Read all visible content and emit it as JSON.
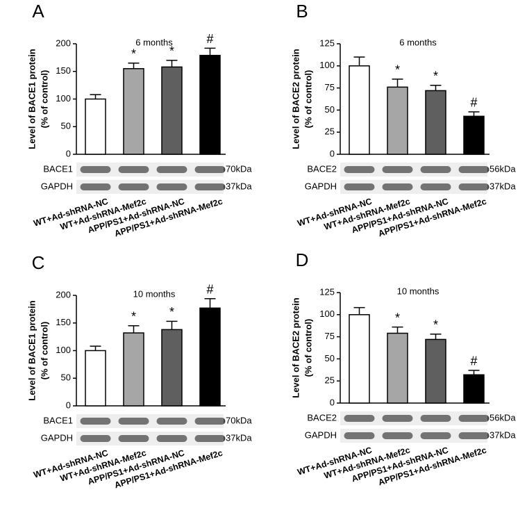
{
  "chart_data": [
    {
      "type": "bar",
      "panel": "A",
      "subtitle": "6 months",
      "y_label": [
        "Level of BACE1 protein",
        "(% of control)"
      ],
      "categories": [
        "WT+Ad-shRNA-NC",
        "WT+Ad-shRNA-Mef2c",
        "APP/PS1+Ad-shRNA-NC",
        "APP/PS1+Ad-shRNA-Mef2c"
      ],
      "values": [
        100,
        155,
        158,
        179
      ],
      "errors": [
        8,
        10,
        12,
        13
      ],
      "annotations": [
        null,
        "*",
        "*",
        "#"
      ],
      "colors": [
        "#ffffff",
        "#a6a6a6",
        "#5f5f5f",
        "#000000"
      ],
      "ylim": [
        0,
        200
      ],
      "yticks": [
        0,
        50,
        100,
        150,
        200
      ],
      "blots": [
        {
          "name": "BACE1",
          "size": "70kDa"
        },
        {
          "name": "GAPDH",
          "size": "37kDa"
        }
      ]
    },
    {
      "type": "bar",
      "panel": "B",
      "subtitle": "6 months",
      "y_label": [
        "Level of BACE2 protein",
        "(% of control)"
      ],
      "categories": [
        "WT+Ad-shRNA-NC",
        "WT+Ad-shRNA-Mef2c",
        "APP/PS1+Ad-shRNA-NC",
        "APP/PS1+Ad-shRNA-Mef2c"
      ],
      "values": [
        100,
        76,
        72,
        43
      ],
      "errors": [
        10,
        9,
        6,
        5
      ],
      "annotations": [
        null,
        "*",
        "*",
        "#"
      ],
      "colors": [
        "#ffffff",
        "#a6a6a6",
        "#5f5f5f",
        "#000000"
      ],
      "ylim": [
        0,
        125
      ],
      "yticks": [
        0,
        25,
        50,
        75,
        100,
        125
      ],
      "blots": [
        {
          "name": "BACE2",
          "size": "56kDa"
        },
        {
          "name": "GAPDH",
          "size": "37kDa"
        }
      ]
    },
    {
      "type": "bar",
      "panel": "C",
      "subtitle": "10 months",
      "y_label": [
        "Level of BACE1 protein",
        "(% of control)"
      ],
      "categories": [
        "WT+Ad-shRNA-NC",
        "WT+Ad-shRNA-Mef2c",
        "APP/PS1+Ad-shRNA-NC",
        "APP/PS1+Ad-shRNA-Mef2c"
      ],
      "values": [
        100,
        132,
        138,
        177
      ],
      "errors": [
        8,
        13,
        15,
        17
      ],
      "annotations": [
        null,
        "*",
        "*",
        "#"
      ],
      "colors": [
        "#ffffff",
        "#a6a6a6",
        "#5f5f5f",
        "#000000"
      ],
      "ylim": [
        0,
        200
      ],
      "yticks": [
        0,
        50,
        100,
        150,
        200
      ],
      "blots": [
        {
          "name": "BACE1",
          "size": "70kDa"
        },
        {
          "name": "GAPDH",
          "size": "37kDa"
        }
      ]
    },
    {
      "type": "bar",
      "panel": "D",
      "subtitle": "10 months",
      "y_label": [
        "Level of BACE2 protein",
        "(% of control)"
      ],
      "categories": [
        "WT+Ad-shRNA-NC",
        "WT+Ad-shRNA-Mef2c",
        "APP/PS1+Ad-shRNA-NC",
        "APP/PS1+Ad-shRNA-Mef2c"
      ],
      "values": [
        100,
        79,
        72,
        32
      ],
      "errors": [
        8,
        7,
        6,
        5
      ],
      "annotations": [
        null,
        "*",
        "*",
        "#"
      ],
      "colors": [
        "#ffffff",
        "#a6a6a6",
        "#5f5f5f",
        "#000000"
      ],
      "ylim": [
        0,
        125
      ],
      "yticks": [
        0,
        25,
        50,
        75,
        100,
        125
      ],
      "blots": [
        {
          "name": "BACE2",
          "size": "56kDa"
        },
        {
          "name": "GAPDH",
          "size": "37kDa"
        }
      ]
    }
  ]
}
